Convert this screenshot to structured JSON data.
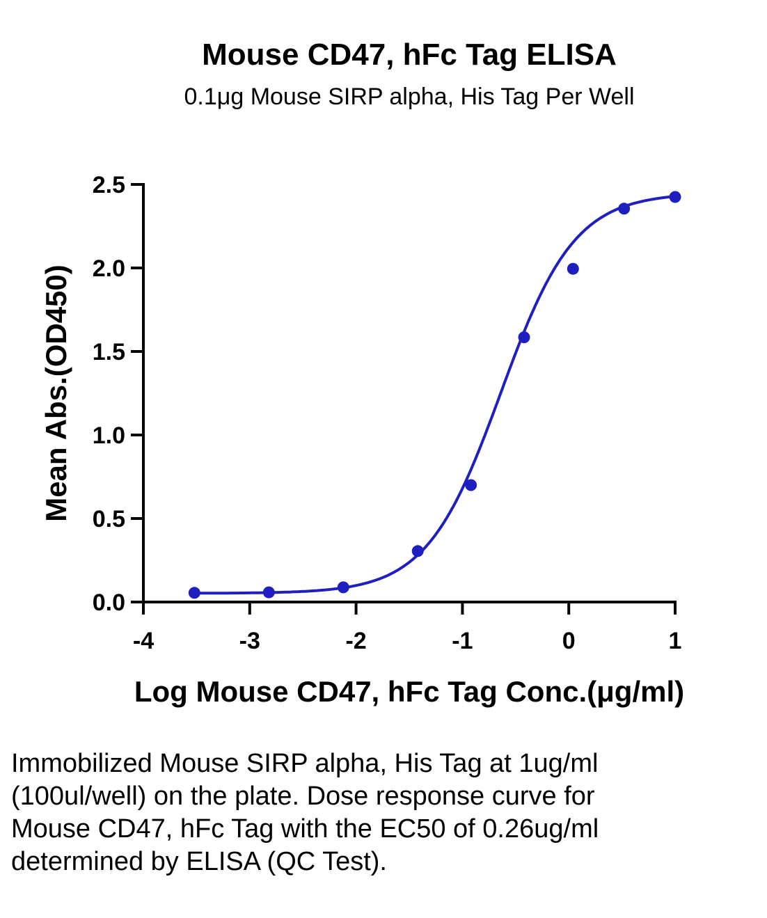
{
  "chart_data": {
    "type": "scatter",
    "title": "Mouse CD47, hFc Tag ELISA",
    "subtitle": "0.1μg Mouse SIRP alpha, His Tag Per Well",
    "xlabel": "Log Mouse CD47, hFc Tag Conc.(μg/ml)",
    "ylabel": "Mean Abs.(OD450)",
    "xlim": [
      -4,
      1
    ],
    "ylim": [
      0,
      2.5
    ],
    "xticks": [
      "-4",
      "-3",
      "-2",
      "-1",
      "0",
      "1"
    ],
    "yticks": [
      "0.0",
      "0.5",
      "1.0",
      "1.5",
      "2.0",
      "2.5"
    ],
    "grid": false,
    "series": [
      {
        "x": [
          -3.52,
          -2.82,
          -2.12,
          -1.42,
          -0.92,
          -0.42,
          0.04,
          0.52,
          1.0
        ],
        "y": [
          0.055,
          0.058,
          0.088,
          0.305,
          0.7,
          1.585,
          1.995,
          2.355,
          2.425
        ],
        "fit": "four-parameter logistic"
      }
    ],
    "color": "#1f1fbf"
  },
  "caption": "Immobilized Mouse SIRP alpha, His Tag at 1ug/ml (100ul/well) on the plate. Dose response curve for Mouse CD47, hFc Tag with the EC50 of 0.26ug/ml determined by ELISA (QC Test)."
}
